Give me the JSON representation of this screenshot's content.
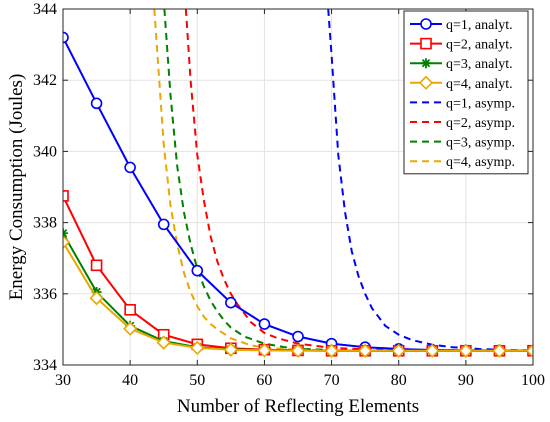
{
  "chart_data": {
    "type": "line",
    "xlabel": "Number of Reflecting Elements",
    "ylabel": "Energy Consumption (Joules)",
    "xlim": [
      30,
      100
    ],
    "ylim": [
      334,
      344
    ],
    "xticks": [
      30,
      40,
      50,
      60,
      70,
      80,
      90,
      100
    ],
    "yticks": [
      334,
      336,
      338,
      340,
      342,
      344
    ],
    "grid": true,
    "legend_position": "top-right",
    "series": [
      {
        "name": "q=1, analyt.",
        "color": "#0000ff",
        "line": "solid",
        "marker": "circle",
        "x": [
          30,
          35,
          40,
          45,
          50,
          55,
          60,
          65,
          70,
          75,
          80,
          85,
          90,
          95,
          100
        ],
        "y": [
          343.2,
          341.35,
          339.55,
          337.95,
          336.65,
          335.75,
          335.15,
          334.8,
          334.6,
          334.5,
          334.45,
          334.42,
          334.41,
          334.41,
          334.4
        ]
      },
      {
        "name": "q=2, analyt.",
        "color": "#ff0000",
        "line": "solid",
        "marker": "square",
        "x": [
          30,
          35,
          40,
          45,
          50,
          55,
          60,
          65,
          70,
          75,
          80,
          85,
          90,
          95,
          100
        ],
        "y": [
          338.75,
          336.8,
          335.55,
          334.85,
          334.58,
          334.47,
          334.43,
          334.41,
          334.4,
          334.4,
          334.4,
          334.4,
          334.4,
          334.4,
          334.4
        ]
      },
      {
        "name": "q=3, analyt.",
        "color": "#008000",
        "line": "solid",
        "marker": "star",
        "x": [
          30,
          35,
          40,
          45,
          50,
          55,
          60,
          65,
          70,
          75,
          80,
          85,
          90,
          95,
          100
        ],
        "y": [
          337.7,
          336.05,
          335.1,
          334.67,
          334.5,
          334.44,
          334.42,
          334.41,
          334.4,
          334.4,
          334.4,
          334.4,
          334.4,
          334.4,
          334.4
        ]
      },
      {
        "name": "q=4, analyt.",
        "color": "#e8a800",
        "line": "solid",
        "marker": "diamond",
        "x": [
          30,
          35,
          40,
          45,
          50,
          55,
          60,
          65,
          70,
          75,
          80,
          85,
          90,
          95,
          100
        ],
        "y": [
          337.45,
          335.88,
          335.02,
          334.63,
          334.48,
          334.43,
          334.41,
          334.4,
          334.4,
          334.4,
          334.4,
          334.4,
          334.4,
          334.4,
          334.4
        ]
      },
      {
        "name": "q=1, asymp.",
        "color": "#0000ff",
        "line": "dashed",
        "marker": "none",
        "x": [
          69.5,
          70,
          71,
          72,
          73,
          74,
          75,
          76,
          78,
          80,
          82,
          85,
          88,
          92,
          96,
          100
        ],
        "y": [
          344,
          342.7,
          339.9,
          338.3,
          337.2,
          336.5,
          336.0,
          335.6,
          335.1,
          334.85,
          334.7,
          334.57,
          334.5,
          334.45,
          334.42,
          334.41
        ]
      },
      {
        "name": "q=2, asymp.",
        "color": "#ff0000",
        "line": "dashed",
        "marker": "none",
        "x": [
          48.3,
          49,
          50,
          51,
          52,
          53,
          54,
          55,
          56,
          58,
          60,
          62,
          65,
          70,
          75,
          80,
          90,
          100
        ],
        "y": [
          344,
          342.0,
          339.9,
          338.6,
          337.6,
          336.9,
          336.4,
          336.0,
          335.7,
          335.2,
          334.9,
          334.75,
          334.6,
          334.48,
          334.44,
          334.42,
          334.41,
          334.4
        ]
      },
      {
        "name": "q=3, asymp.",
        "color": "#008000",
        "line": "dashed",
        "marker": "none",
        "x": [
          45.1,
          46,
          47,
          48,
          49,
          50,
          51,
          52,
          53,
          54,
          55,
          57,
          60,
          63,
          66,
          70,
          75,
          80,
          90,
          100
        ],
        "y": [
          344,
          341.6,
          339.6,
          338.3,
          337.4,
          336.7,
          336.2,
          335.8,
          335.5,
          335.25,
          335.05,
          334.8,
          334.6,
          334.5,
          334.45,
          334.42,
          334.41,
          334.4,
          334.4,
          334.4
        ]
      },
      {
        "name": "q=4, asymp.",
        "color": "#e8a800",
        "line": "dashed",
        "marker": "none",
        "x": [
          43.6,
          44,
          45,
          46,
          47,
          48,
          49,
          50,
          51,
          52,
          53,
          55,
          58,
          61,
          65,
          70,
          80,
          90,
          100
        ],
        "y": [
          344,
          342.9,
          340.2,
          338.5,
          337.4,
          336.6,
          336.05,
          335.65,
          335.35,
          335.15,
          335.0,
          334.75,
          334.55,
          334.47,
          334.43,
          334.41,
          334.4,
          334.4,
          334.4
        ]
      }
    ]
  }
}
